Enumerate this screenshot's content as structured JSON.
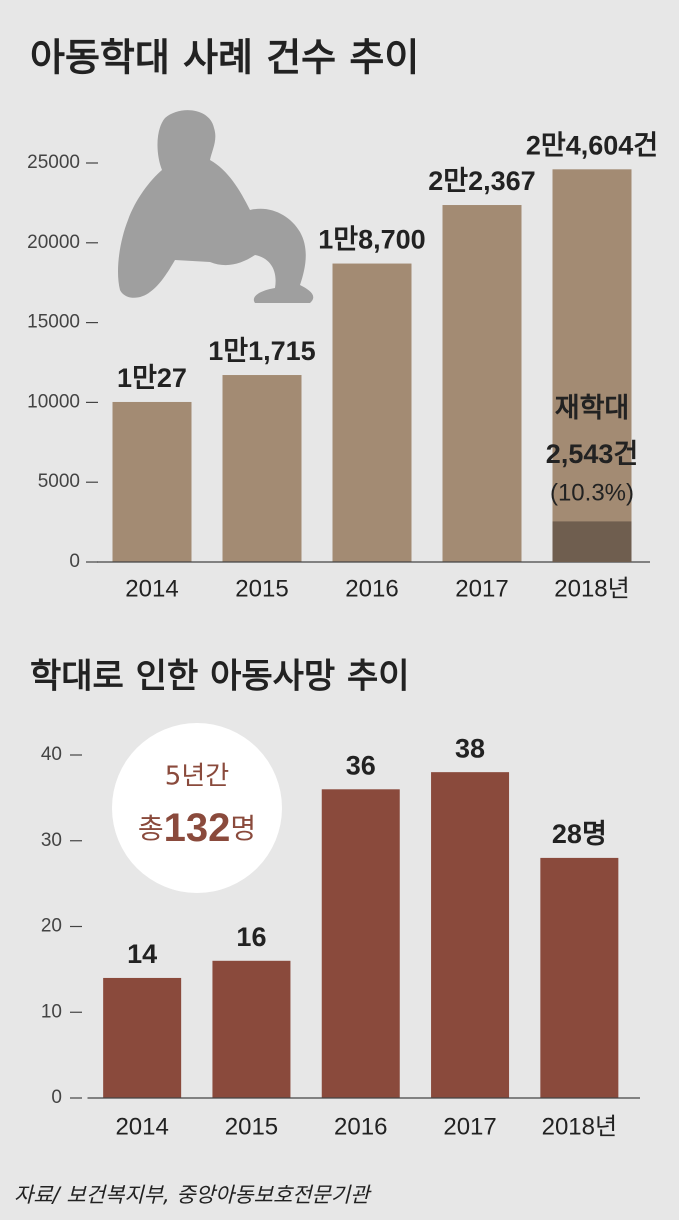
{
  "chart_data": [
    {
      "type": "bar",
      "title": "아동학대 사례 건수 추이",
      "categories": [
        "2014",
        "2015",
        "2016",
        "2017",
        "2018년"
      ],
      "values": [
        10027,
        11715,
        18700,
        22367,
        24604
      ],
      "value_labels": [
        "1만27",
        "1만1,715",
        "1만8,700",
        "2만2,367",
        "2만4,604건"
      ],
      "color": "#a38b73",
      "ylim": [
        0,
        25000
      ],
      "yticks": [
        0,
        5000,
        10000,
        15000,
        20000,
        25000
      ],
      "grid": false,
      "highlight": {
        "label": "재학대",
        "value": 2543,
        "value_label": "2,543건",
        "share_label": "(10.3%)",
        "color": "#6f5e4f"
      }
    },
    {
      "type": "bar",
      "title": "학대로 인한 아동사망 추이",
      "categories": [
        "2014",
        "2015",
        "2016",
        "2017",
        "2018년"
      ],
      "values": [
        14,
        16,
        36,
        38,
        28
      ],
      "value_labels": [
        "14",
        "16",
        "36",
        "38",
        "28명"
      ],
      "color": "#8a4a3c",
      "ylim": [
        0,
        40
      ],
      "yticks": [
        0,
        10,
        20,
        30,
        40
      ],
      "grid": false,
      "callout": {
        "period": "5년간",
        "prefix": "총",
        "total": 132,
        "suffix": "명"
      }
    }
  ],
  "source": "자료/ 보건복지부, 중앙아동보호전문기관"
}
